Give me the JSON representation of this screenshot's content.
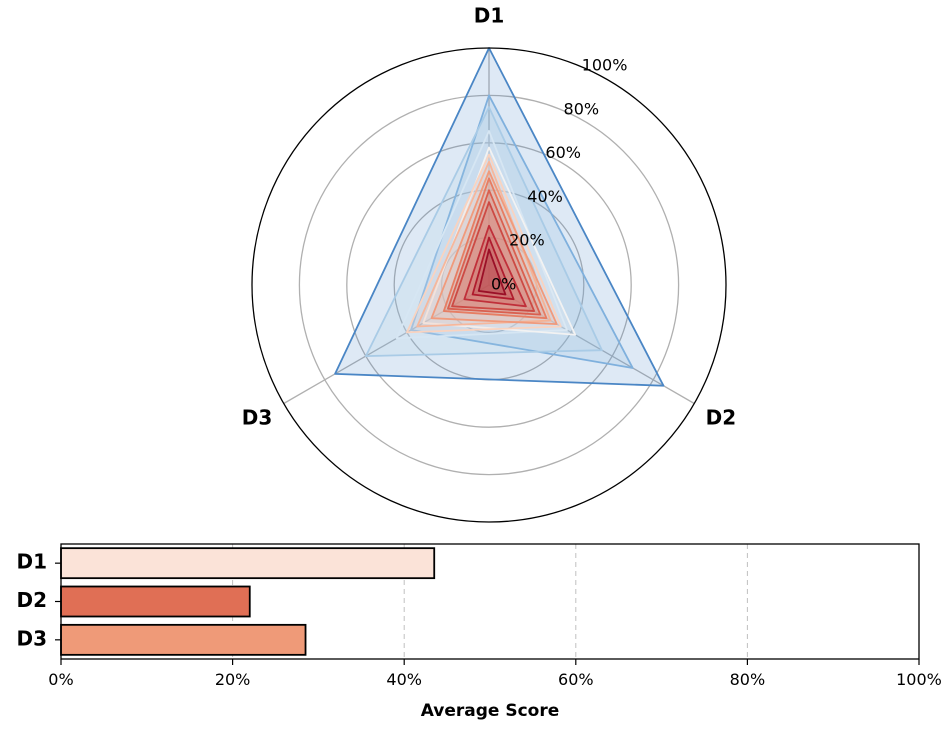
{
  "chart_data": [
    {
      "type": "radar",
      "axes": [
        "D1",
        "D2",
        "D3"
      ],
      "rings": [
        0,
        20,
        40,
        60,
        80,
        100
      ],
      "ring_labels": [
        "0%",
        "20%",
        "40%",
        "60%",
        "80%",
        "100%"
      ],
      "rlim": [
        0,
        100
      ],
      "grid": true,
      "series": [
        {
          "values": [
            100,
            85,
            75
          ],
          "color": "#4a86c5"
        },
        {
          "values": [
            80,
            70,
            38
          ],
          "color": "#7fb0dd"
        },
        {
          "values": [
            75,
            55,
            60
          ],
          "color": "#a9cbe6"
        },
        {
          "values": [
            65,
            38,
            45
          ],
          "color": "#d6e6f3"
        },
        {
          "values": [
            58,
            42,
            32
          ],
          "color": "#f2f2f2"
        },
        {
          "values": [
            55,
            35,
            40
          ],
          "color": "#f9d3c0"
        },
        {
          "values": [
            52,
            30,
            35
          ],
          "color": "#f6b79c"
        },
        {
          "values": [
            48,
            33,
            28
          ],
          "color": "#f09a7c"
        },
        {
          "values": [
            45,
            28,
            22
          ],
          "color": "#e67d63"
        },
        {
          "values": [
            40,
            25,
            20
          ],
          "color": "#d96050"
        },
        {
          "values": [
            35,
            22,
            18
          ],
          "color": "#cc4a44"
        },
        {
          "values": [
            25,
            18,
            12
          ],
          "color": "#c0303a"
        },
        {
          "values": [
            20,
            12,
            8
          ],
          "color": "#b01c2e"
        },
        {
          "values": [
            15,
            8,
            5
          ],
          "color": "#9a1027"
        }
      ]
    },
    {
      "type": "bar",
      "orientation": "horizontal",
      "categories": [
        "D1",
        "D2",
        "D3"
      ],
      "values": [
        43.5,
        22,
        28.5
      ],
      "colors": [
        "#fbe3d8",
        "#e06f55",
        "#ef9a78"
      ],
      "xlabel": "Average Score",
      "xlim": [
        0,
        100
      ],
      "xticks": [
        0,
        20,
        40,
        60,
        80,
        100
      ],
      "xtick_labels": [
        "0%",
        "20%",
        "40%",
        "60%",
        "80%",
        "100%"
      ],
      "grid": true
    }
  ]
}
